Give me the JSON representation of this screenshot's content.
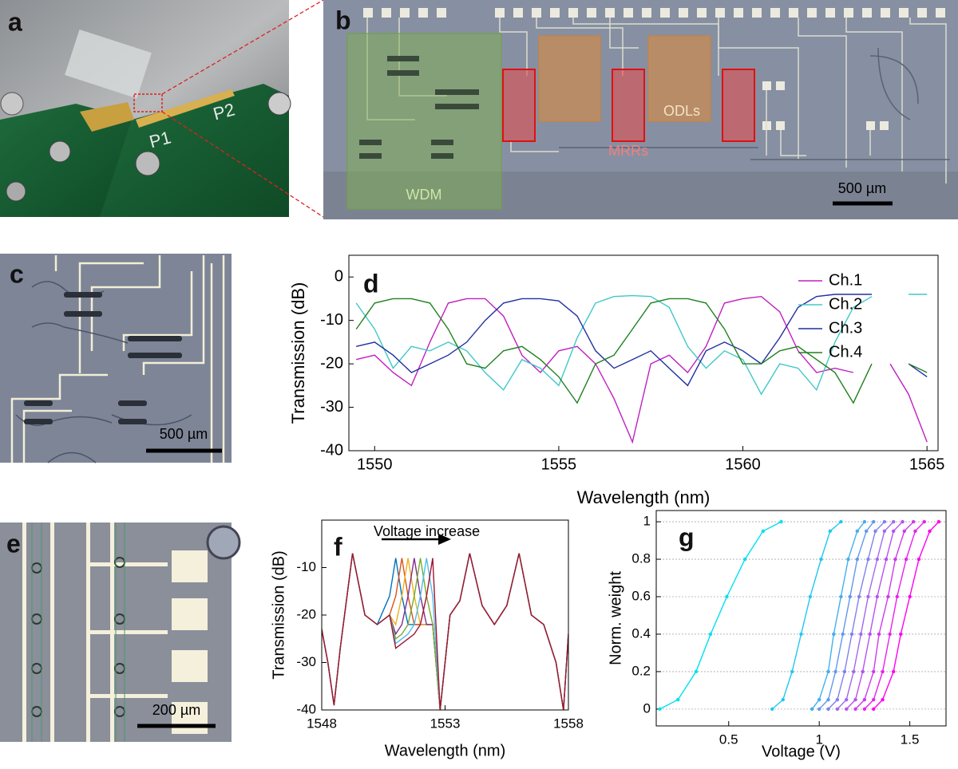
{
  "panel_labels": [
    "a",
    "b",
    "c",
    "d",
    "e",
    "f",
    "g"
  ],
  "photo_a": {
    "labels": [
      "P1",
      "P2"
    ]
  },
  "photo_b": {
    "labels": [
      "WDM",
      "MRRs",
      "ODLs"
    ],
    "scale_bar": "500 µm"
  },
  "photo_c": {
    "scale_bar": "500 µm"
  },
  "photo_e": {
    "scale_bar": "200 µm"
  },
  "chart_data": [
    {
      "type": "line",
      "ylabel": "Transmission (dB)",
      "xlabel": "Wavelength (nm)",
      "x": [
        1549.5,
        1550,
        1550.5,
        1551,
        1551.5,
        1552,
        1552.5,
        1553,
        1553.5,
        1554,
        1554.5,
        1555,
        1555.5,
        1556,
        1556.5,
        1557,
        1557.5,
        1558,
        1558.5,
        1559,
        1559.5,
        1560,
        1560.5,
        1561,
        1561.5,
        1562,
        1562.5,
        1563,
        1563.5,
        1564,
        1564.5,
        1565
      ],
      "xlim": [
        1549.3,
        1565.3
      ],
      "xticks": [
        1550,
        1555,
        1560,
        1565
      ],
      "ylim": [
        -40,
        5
      ],
      "yticks": [
        0,
        -10,
        -20,
        -30,
        -40
      ],
      "legend": "upper right",
      "series": [
        {
          "name": "Ch.1",
          "color": "#c020c0",
          "values": [
            -19,
            -18,
            -22,
            -25,
            -15,
            -6,
            -5,
            -5,
            -9,
            -18,
            -22,
            -17,
            -16,
            -20,
            -28,
            -38,
            -20,
            -18,
            -22,
            -16,
            -6,
            -5,
            -4.5,
            -8,
            -17,
            -22,
            -21,
            -22,
            null,
            -20,
            -27,
            -38
          ]
        },
        {
          "name": "Ch.2",
          "color": "#40c8c8",
          "values": [
            -6,
            -12,
            -21,
            -16,
            -17,
            -15,
            -17,
            -22,
            -26,
            -19,
            -21,
            -25,
            -14,
            -6,
            -4.5,
            -4.3,
            -4.5,
            -7,
            -16,
            -21,
            -17,
            -19,
            -27,
            -20,
            -21,
            -26,
            -15,
            -7,
            -4.5,
            null,
            -4,
            -4
          ]
        },
        {
          "name": "Ch.3",
          "color": "#2030a0",
          "values": [
            -16,
            -15,
            -18,
            -22,
            -20,
            -18,
            -15,
            -10,
            -6,
            -5,
            -5,
            -5.5,
            -9,
            -17,
            -21,
            -19,
            -17,
            -21,
            -25,
            -17,
            -15,
            -17,
            -20,
            -14,
            -7,
            -4.5,
            -4,
            -4,
            -4,
            null,
            -20,
            -23
          ]
        },
        {
          "name": "Ch.4",
          "color": "#208020",
          "values": [
            -12,
            -6,
            -5,
            -5,
            -6,
            -12,
            -20,
            -21,
            -17,
            -16,
            -19,
            -23,
            -29,
            -20,
            -18,
            -12,
            -6,
            -5,
            -5,
            -6,
            -12,
            -20,
            -20,
            -17,
            -16,
            -19,
            -22,
            -29,
            -20,
            null,
            -20,
            -22
          ]
        }
      ]
    },
    {
      "type": "line",
      "ylabel": "Transmission (dB)",
      "xlabel": "Wavelength (nm)",
      "annotation": "Voltage increase",
      "x": [
        1548,
        1548.25,
        1548.5,
        1548.75,
        1549.25,
        1549.75,
        1550.25,
        1550.75,
        1551,
        1551.25,
        1551.5,
        1551.75,
        1552,
        1552.25,
        1552.5,
        1552.8,
        1553.2,
        1553.6,
        1554,
        1554.5,
        1555,
        1555.5,
        1556,
        1556.5,
        1557,
        1557.5,
        1557.8,
        1558
      ],
      "xlim": [
        1548,
        1558
      ],
      "xticks": [
        1548,
        1553,
        1558
      ],
      "ylim": [
        -40,
        0
      ],
      "yticks": [
        -10,
        -20,
        -30,
        -40
      ],
      "series": [
        {
          "color": "#0072bd",
          "values": [
            -23,
            -30,
            -39,
            -27,
            -7,
            -20,
            -22,
            -16,
            -8,
            -16,
            -22,
            -22,
            -22,
            -22,
            -22,
            -40,
            -20,
            -17,
            -7,
            -18,
            -22,
            -18,
            -7,
            -20,
            -22,
            -30,
            -40,
            -24
          ]
        },
        {
          "color": "#d95319",
          "values": [
            -23,
            -30,
            -39,
            -27,
            -7,
            -20,
            -22,
            -20,
            -16,
            -8,
            -16,
            -22,
            -22,
            -22,
            -22,
            -40,
            -20,
            -17,
            -7,
            -18,
            -22,
            -18,
            -7,
            -20,
            -22,
            -30,
            -40,
            -24
          ]
        },
        {
          "color": "#edb120",
          "values": [
            -23,
            -30,
            -39,
            -27,
            -7,
            -20,
            -22,
            -20,
            -22,
            -16,
            -8,
            -16,
            -22,
            -22,
            -22,
            -40,
            -20,
            -17,
            -7,
            -18,
            -22,
            -18,
            -7,
            -20,
            -22,
            -30,
            -40,
            -24
          ]
        },
        {
          "color": "#7e2f8e",
          "values": [
            -23,
            -30,
            -39,
            -27,
            -7,
            -20,
            -22,
            -20,
            -24,
            -22,
            -16,
            -8,
            -16,
            -22,
            -22,
            -40,
            -20,
            -17,
            -7,
            -18,
            -22,
            -18,
            -7,
            -20,
            -22,
            -30,
            -40,
            -24
          ]
        },
        {
          "color": "#77ac30",
          "values": [
            -23,
            -30,
            -39,
            -27,
            -7,
            -20,
            -22,
            -20,
            -25,
            -24,
            -22,
            -16,
            -8,
            -16,
            -22,
            -40,
            -20,
            -17,
            -7,
            -18,
            -22,
            -18,
            -7,
            -20,
            -22,
            -30,
            -40,
            -24
          ]
        },
        {
          "color": "#4dbeee",
          "values": [
            -23,
            -30,
            -39,
            -27,
            -7,
            -20,
            -22,
            -20,
            -26,
            -25,
            -24,
            -22,
            -16,
            -8,
            -16,
            -40,
            -20,
            -17,
            -7,
            -18,
            -22,
            -18,
            -7,
            -20,
            -22,
            -30,
            -40,
            -24
          ]
        },
        {
          "color": "#a2142f",
          "values": [
            -23,
            -30,
            -39,
            -27,
            -7,
            -20,
            -22,
            -20,
            -27,
            -26,
            -25,
            -24,
            -22,
            -16,
            -8,
            -40,
            -20,
            -17,
            -7,
            -18,
            -22,
            -18,
            -7,
            -20,
            -22,
            -30,
            -40,
            -24
          ]
        }
      ]
    },
    {
      "type": "line",
      "markers": true,
      "grid": true,
      "ylabel": "Norm. weight",
      "xlabel": "Voltage (V)",
      "xlim": [
        0.1,
        1.7
      ],
      "xticks": [
        0.5,
        1,
        1.5
      ],
      "ylim": [
        -0.09,
        1.06
      ],
      "yticks": [
        0,
        0.2,
        0.4,
        0.6,
        0.8,
        1
      ],
      "series": [
        {
          "color": "#00e0f0",
          "x": [
            0.12,
            0.22,
            0.32,
            0.4,
            0.49,
            0.59,
            0.69,
            0.79
          ],
          "values": [
            0,
            0.05,
            0.2,
            0.4,
            0.6,
            0.8,
            0.95,
            1
          ]
        },
        {
          "color": "#20c8f0",
          "x": [
            0.74,
            0.8,
            0.85,
            0.9,
            0.95,
            1.01,
            1.06,
            1.12
          ],
          "values": [
            0,
            0.05,
            0.2,
            0.4,
            0.6,
            0.8,
            0.95,
            1
          ]
        },
        {
          "color": "#40b0f0",
          "x": [
            0.96,
            1.0,
            1.05,
            1.08,
            1.12,
            1.16,
            1.21,
            1.25
          ],
          "values": [
            0,
            0.05,
            0.2,
            0.4,
            0.6,
            0.8,
            0.95,
            1
          ]
        },
        {
          "color": "#6098f0",
          "x": [
            1.0,
            1.05,
            1.09,
            1.13,
            1.17,
            1.21,
            1.26,
            1.3
          ],
          "values": [
            0,
            0.05,
            0.2,
            0.4,
            0.6,
            0.8,
            0.95,
            1
          ]
        },
        {
          "color": "#8080f0",
          "x": [
            1.05,
            1.1,
            1.14,
            1.18,
            1.22,
            1.27,
            1.31,
            1.36
          ],
          "values": [
            0,
            0.05,
            0.2,
            0.4,
            0.6,
            0.8,
            0.95,
            1
          ]
        },
        {
          "color": "#a068f0",
          "x": [
            1.1,
            1.15,
            1.19,
            1.23,
            1.27,
            1.32,
            1.36,
            1.41
          ],
          "values": [
            0,
            0.05,
            0.2,
            0.4,
            0.6,
            0.8,
            0.95,
            1
          ]
        },
        {
          "color": "#b850f0",
          "x": [
            1.15,
            1.2,
            1.24,
            1.28,
            1.32,
            1.37,
            1.41,
            1.46
          ],
          "values": [
            0,
            0.05,
            0.2,
            0.4,
            0.6,
            0.8,
            0.95,
            1
          ]
        },
        {
          "color": "#d038f0",
          "x": [
            1.2,
            1.25,
            1.3,
            1.33,
            1.38,
            1.42,
            1.47,
            1.52
          ],
          "values": [
            0,
            0.05,
            0.2,
            0.4,
            0.6,
            0.8,
            0.95,
            1
          ]
        },
        {
          "color": "#e820f0",
          "x": [
            1.25,
            1.3,
            1.35,
            1.39,
            1.43,
            1.48,
            1.53,
            1.58
          ],
          "values": [
            0,
            0.05,
            0.2,
            0.4,
            0.6,
            0.8,
            0.95,
            1
          ]
        },
        {
          "color": "#ff00f0",
          "x": [
            1.3,
            1.35,
            1.41,
            1.45,
            1.5,
            1.55,
            1.61,
            1.66
          ],
          "values": [
            0,
            0.05,
            0.2,
            0.4,
            0.6,
            0.8,
            0.95,
            1
          ]
        }
      ]
    }
  ]
}
